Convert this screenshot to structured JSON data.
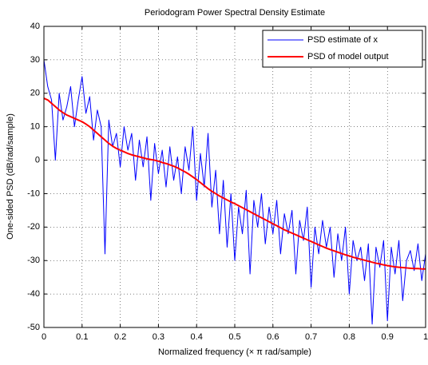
{
  "chart_data": {
    "type": "line",
    "title": "Periodogram Power Spectral Density Estimate",
    "xlabel": "Normalized frequency (× π rad/sample)",
    "ylabel": "One-sided PSD (dB/rad/sample)",
    "x": [
      0,
      0.01,
      0.02,
      0.03,
      0.04,
      0.05,
      0.06,
      0.07,
      0.08,
      0.09,
      0.1,
      0.11,
      0.12,
      0.13,
      0.14,
      0.15,
      0.16,
      0.17,
      0.18,
      0.19,
      0.2,
      0.21,
      0.22,
      0.23,
      0.24,
      0.25,
      0.26,
      0.27,
      0.28,
      0.29,
      0.3,
      0.31,
      0.32,
      0.33,
      0.34,
      0.35,
      0.36,
      0.37,
      0.38,
      0.39,
      0.4,
      0.41,
      0.42,
      0.43,
      0.44,
      0.45,
      0.46,
      0.47,
      0.48,
      0.49,
      0.5,
      0.51,
      0.52,
      0.53,
      0.54,
      0.55,
      0.56,
      0.57,
      0.58,
      0.59,
      0.6,
      0.61,
      0.62,
      0.63,
      0.64,
      0.65,
      0.66,
      0.67,
      0.68,
      0.69,
      0.7,
      0.71,
      0.72,
      0.73,
      0.74,
      0.75,
      0.76,
      0.77,
      0.78,
      0.79,
      0.8,
      0.81,
      0.82,
      0.83,
      0.84,
      0.85,
      0.86,
      0.87,
      0.88,
      0.89,
      0.9,
      0.91,
      0.92,
      0.93,
      0.94,
      0.95,
      0.96,
      0.97,
      0.98,
      0.99,
      1
    ],
    "series": [
      {
        "name": "PSD estimate of x",
        "color": "#0000ff",
        "width": 1,
        "values": [
          30,
          22,
          18,
          0,
          20,
          12,
          16,
          22,
          10,
          18,
          25,
          14,
          19,
          6,
          15,
          10,
          -28,
          12,
          4,
          8,
          -2,
          10,
          3,
          8,
          -6,
          6,
          -2,
          7,
          -12,
          5,
          -4,
          3,
          -8,
          4,
          -6,
          1,
          -10,
          4,
          -3,
          10,
          -12,
          2,
          -8,
          8,
          -14,
          -3,
          -22,
          -6,
          -26,
          -10,
          -30,
          -14,
          -22,
          -9,
          -34,
          -12,
          -20,
          -10,
          -25,
          -14,
          -22,
          -12,
          -28,
          -16,
          -22,
          -15,
          -34,
          -18,
          -24,
          -14,
          -38,
          -20,
          -28,
          -18,
          -26,
          -20,
          -35,
          -22,
          -30,
          -20,
          -40,
          -24,
          -30,
          -26,
          -36,
          -25,
          -49,
          -26,
          -32,
          -24,
          -48,
          -26,
          -34,
          -24,
          -42,
          -30,
          -27,
          -33,
          -25,
          -36,
          -28
        ]
      },
      {
        "name": "PSD of model output",
        "color": "#ff0000",
        "width": 2,
        "values": [
          18.5,
          18,
          17,
          16,
          15,
          14.2,
          13.5,
          13,
          12.5,
          12,
          11.5,
          10.8,
          10,
          9,
          8,
          7,
          6,
          5,
          4.2,
          3.5,
          3,
          2.5,
          2,
          1.6,
          1.3,
          1,
          0.7,
          0.4,
          0.2,
          0,
          -0.3,
          -0.7,
          -1,
          -1.4,
          -1.8,
          -2.3,
          -2.9,
          -3.5,
          -4.2,
          -5,
          -5.8,
          -6.7,
          -7.6,
          -8.5,
          -9.3,
          -10,
          -10.7,
          -11.3,
          -11.9,
          -12.5,
          -13,
          -13.6,
          -14.2,
          -14.8,
          -15.4,
          -16,
          -16.6,
          -17.2,
          -17.8,
          -18.4,
          -19,
          -19.6,
          -20.2,
          -20.8,
          -21.3,
          -21.8,
          -22.3,
          -22.8,
          -23.3,
          -23.8,
          -24.3,
          -24.8,
          -25.3,
          -25.8,
          -26.3,
          -26.7,
          -27.1,
          -27.5,
          -27.9,
          -28.3,
          -28.6,
          -29,
          -29.3,
          -29.6,
          -29.9,
          -30.2,
          -30.5,
          -30.8,
          -31,
          -31.3,
          -31.5,
          -31.7,
          -31.9,
          -32,
          -32.1,
          -32.2,
          -32.3,
          -32.4,
          -32.4,
          -32.5,
          -32.5
        ]
      }
    ],
    "xlim": [
      0,
      1
    ],
    "xticks": [
      0,
      0.1,
      0.2,
      0.3,
      0.4,
      0.5,
      0.6,
      0.7,
      0.8,
      0.9,
      1
    ],
    "ylim": [
      -50,
      40
    ],
    "yticks": [
      -50,
      -40,
      -30,
      -20,
      -10,
      0,
      10,
      20,
      30,
      40
    ],
    "grid": true,
    "legend": "upper right"
  }
}
